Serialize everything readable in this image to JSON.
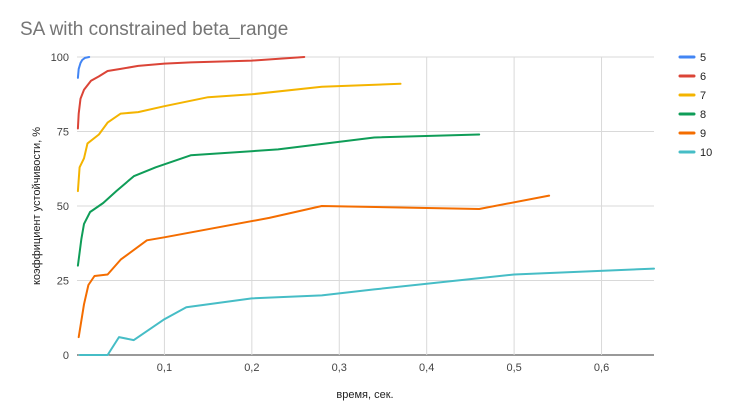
{
  "chart_data": {
    "type": "line",
    "title": "SA with constrained beta_range",
    "xlabel": "время, сек.",
    "ylabel": "коэффициент устойчивости, %",
    "xlim": [
      0,
      0.66
    ],
    "ylim": [
      0,
      100
    ],
    "x_ticks": [
      {
        "value": 0.1,
        "label": "0,1"
      },
      {
        "value": 0.2,
        "label": "0,2"
      },
      {
        "value": 0.3,
        "label": "0,3"
      },
      {
        "value": 0.4,
        "label": "0,4"
      },
      {
        "value": 0.5,
        "label": "0,5"
      },
      {
        "value": 0.6,
        "label": "0,6"
      }
    ],
    "y_ticks": [
      {
        "value": 0,
        "label": "0"
      },
      {
        "value": 25,
        "label": "25"
      },
      {
        "value": 50,
        "label": "50"
      },
      {
        "value": 75,
        "label": "75"
      },
      {
        "value": 100,
        "label": "100"
      }
    ],
    "grid": true,
    "legend": "right",
    "series": [
      {
        "name": "5",
        "color": "#4285f4",
        "points": [
          [
            0.001,
            93
          ],
          [
            0.002,
            96
          ],
          [
            0.004,
            98
          ],
          [
            0.006,
            99
          ],
          [
            0.009,
            99.7
          ],
          [
            0.014,
            100
          ]
        ]
      },
      {
        "name": "6",
        "color": "#db4437",
        "points": [
          [
            0.001,
            76
          ],
          [
            0.002,
            81
          ],
          [
            0.004,
            86
          ],
          [
            0.008,
            89
          ],
          [
            0.016,
            92
          ],
          [
            0.025,
            93.5
          ],
          [
            0.035,
            95.3
          ],
          [
            0.05,
            96
          ],
          [
            0.07,
            97
          ],
          [
            0.1,
            97.8
          ],
          [
            0.13,
            98.2
          ],
          [
            0.2,
            98.8
          ],
          [
            0.26,
            100
          ]
        ]
      },
      {
        "name": "7",
        "color": "#f4b400",
        "points": [
          [
            0.001,
            55
          ],
          [
            0.003,
            63
          ],
          [
            0.008,
            66
          ],
          [
            0.012,
            71
          ],
          [
            0.025,
            74
          ],
          [
            0.035,
            78
          ],
          [
            0.05,
            81
          ],
          [
            0.07,
            81.5
          ],
          [
            0.1,
            83.5
          ],
          [
            0.15,
            86.5
          ],
          [
            0.2,
            87.5
          ],
          [
            0.28,
            90
          ],
          [
            0.37,
            91
          ]
        ]
      },
      {
        "name": "8",
        "color": "#0f9d58",
        "points": [
          [
            0.001,
            30
          ],
          [
            0.005,
            39
          ],
          [
            0.008,
            44
          ],
          [
            0.015,
            48
          ],
          [
            0.02,
            49
          ],
          [
            0.03,
            51
          ],
          [
            0.045,
            55
          ],
          [
            0.065,
            60
          ],
          [
            0.09,
            63
          ],
          [
            0.13,
            67
          ],
          [
            0.23,
            69
          ],
          [
            0.34,
            73
          ],
          [
            0.46,
            74
          ]
        ]
      },
      {
        "name": "9",
        "color": "#f46d00",
        "points": [
          [
            0.002,
            6
          ],
          [
            0.008,
            17
          ],
          [
            0.013,
            23.5
          ],
          [
            0.02,
            26.5
          ],
          [
            0.035,
            27
          ],
          [
            0.05,
            32
          ],
          [
            0.08,
            38.5
          ],
          [
            0.1,
            39.5
          ],
          [
            0.22,
            46
          ],
          [
            0.28,
            50
          ],
          [
            0.46,
            49
          ],
          [
            0.54,
            53.5
          ]
        ]
      },
      {
        "name": "10",
        "color": "#46bdc6",
        "points": [
          [
            0.003,
            0
          ],
          [
            0.035,
            0
          ],
          [
            0.048,
            6
          ],
          [
            0.065,
            5
          ],
          [
            0.1,
            12
          ],
          [
            0.125,
            16
          ],
          [
            0.2,
            19
          ],
          [
            0.28,
            20
          ],
          [
            0.34,
            22
          ],
          [
            0.5,
            27
          ],
          [
            0.66,
            29
          ]
        ]
      }
    ]
  }
}
